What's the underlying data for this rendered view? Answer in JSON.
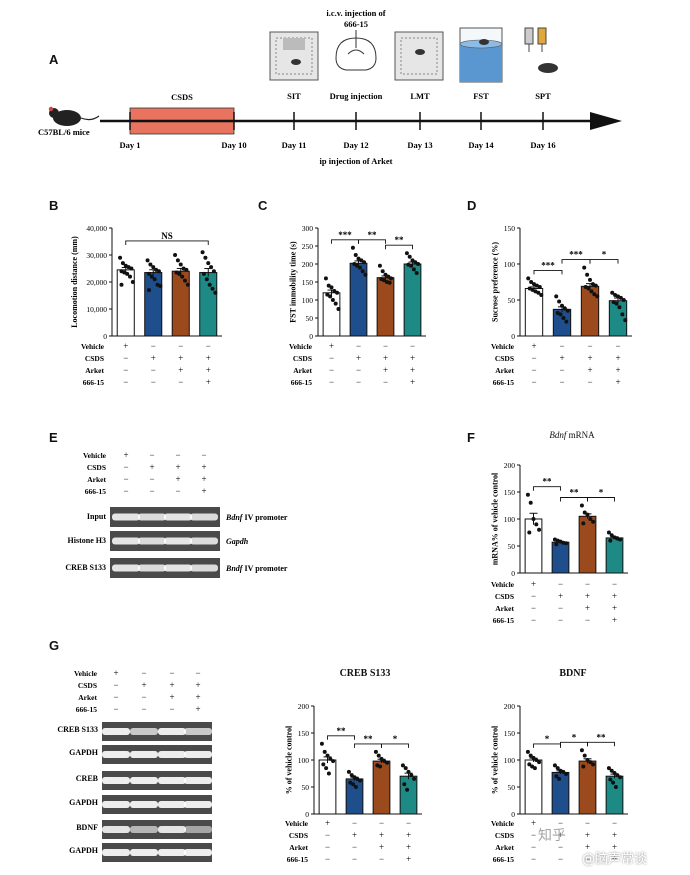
{
  "panel_labels": {
    "a": "A",
    "b": "B",
    "c": "C",
    "d": "D",
    "e": "E",
    "f": "F",
    "g": "G"
  },
  "timeline": {
    "mouse_label": "C57BL/6 mice",
    "csds_label": "CSDS",
    "icv_label": "i.c.v. injection of",
    "icv_compound": "666-15",
    "ip_label": "ip injection of Arket",
    "events": [
      {
        "top": "",
        "day": "Day 1"
      },
      {
        "top": "",
        "day": "Day 10"
      },
      {
        "top": "SIT",
        "day": "Day 11"
      },
      {
        "top": "Drug injection",
        "day": "Day 12"
      },
      {
        "top": "LMT",
        "day": "Day 13"
      },
      {
        "top": "FST",
        "day": "Day 14"
      },
      {
        "top": "SPT",
        "day": "Day 16"
      }
    ],
    "colors": {
      "csds_bar": "#e8735e"
    }
  },
  "groups": {
    "rows": [
      "Vehicle",
      "CSDS",
      "Arket",
      "666-15"
    ],
    "signs": [
      [
        "+",
        "−",
        "−",
        "−"
      ],
      [
        "−",
        "+",
        "+",
        "+"
      ],
      [
        "−",
        "−",
        "+",
        "+"
      ],
      [
        "−",
        "−",
        "−",
        "+"
      ]
    ],
    "colors": [
      "#ffffff",
      "#1f4e8c",
      "#9a4a1c",
      "#1e8a86"
    ]
  },
  "panel_e": {
    "rows": [
      {
        "label": "Input",
        "gene_italic": "Bdnf",
        "gene_rest": " IV promoter"
      },
      {
        "label": "Histone H3",
        "gene_italic": "Gapdh",
        "gene_rest": ""
      },
      {
        "label": "CREB S133",
        "gene_italic": "Bndf",
        "gene_rest": " IV promoter"
      }
    ]
  },
  "panel_f": {
    "title_italic": "Bdnf",
    "title_rest": " mRNA"
  },
  "panel_g": {
    "blot_labels": [
      "CREB S133",
      "GAPDH",
      "CREB",
      "GAPDH",
      "BDNF",
      "GAPDH"
    ],
    "chart_titles": [
      "CREB S133",
      "BDNF"
    ]
  },
  "watermark": {
    "line1": "知乎",
    "line2": "@脑声常谈"
  },
  "chart_data": [
    {
      "id": "B",
      "type": "bar",
      "categories": [
        "Vehicle",
        "CSDS",
        "CSDS+Arket",
        "CSDS+Arket+666-15"
      ],
      "values": [
        24500,
        23500,
        24000,
        23500
      ],
      "ylabel": "Locomotion distance (mm)",
      "ylim": [
        0,
        40000
      ],
      "ticks": [
        0,
        10000,
        20000,
        30000,
        40000
      ],
      "tick_labels": [
        "0",
        "10,000",
        "20,000",
        "30,000",
        "40,000"
      ],
      "points": [
        [
          29000,
          27000,
          26000,
          25500,
          25000,
          24000,
          23500,
          23000,
          22000,
          20000,
          19000
        ],
        [
          28000,
          26500,
          25500,
          24500,
          24000,
          23000,
          22000,
          21000,
          19000,
          18500,
          17000
        ],
        [
          30000,
          28000,
          26500,
          25000,
          24500,
          23500,
          23000,
          22000,
          20500,
          19000
        ],
        [
          31000,
          29000,
          27000,
          25500,
          24000,
          23000,
          21000,
          19000,
          17500,
          16000
        ]
      ],
      "brackets": [
        {
          "from": 0,
          "to": 3,
          "text": "NS"
        }
      ]
    },
    {
      "id": "C",
      "type": "bar",
      "categories": [
        "Vehicle",
        "CSDS",
        "CSDS+Arket",
        "CSDS+Arket+666-15"
      ],
      "values": [
        120,
        202,
        162,
        200
      ],
      "ylabel": "FST immobility time (s)",
      "ylim": [
        0,
        300
      ],
      "ticks": [
        0,
        50,
        100,
        150,
        200,
        250,
        300
      ],
      "tick_labels": [
        "0",
        "50",
        "100",
        "150",
        "200",
        "250",
        "300"
      ],
      "points": [
        [
          160,
          140,
          135,
          125,
          120,
          115,
          110,
          100,
          90,
          75
        ],
        [
          245,
          225,
          215,
          210,
          205,
          200,
          195,
          190,
          180,
          170
        ],
        [
          195,
          180,
          170,
          165,
          160,
          158,
          155,
          150,
          148
        ],
        [
          230,
          220,
          210,
          205,
          200,
          198,
          195,
          185,
          175
        ]
      ],
      "brackets": [
        {
          "from": 0,
          "to": 1,
          "text": "***"
        },
        {
          "from": 1,
          "to": 2,
          "text": "**"
        },
        {
          "from": 2,
          "to": 3,
          "text": "**"
        }
      ]
    },
    {
      "id": "D",
      "type": "bar",
      "categories": [
        "Vehicle",
        "CSDS",
        "CSDS+Arket",
        "CSDS+Arket+666-15"
      ],
      "values": [
        66,
        37,
        69,
        49
      ],
      "ylabel": "Sucrose preference (%)",
      "ylim": [
        0,
        150
      ],
      "ticks": [
        0,
        50,
        100,
        150
      ],
      "tick_labels": [
        "0",
        "50",
        "100",
        "150"
      ],
      "points": [
        [
          80,
          75,
          72,
          70,
          68,
          66,
          64,
          62,
          60,
          57
        ],
        [
          55,
          48,
          42,
          38,
          35,
          32,
          30,
          25,
          20
        ],
        [
          95,
          85,
          78,
          72,
          70,
          68,
          66,
          62,
          58,
          55
        ],
        [
          60,
          57,
          55,
          53,
          50,
          47,
          45,
          40,
          30,
          22
        ]
      ],
      "brackets": [
        {
          "from": 0,
          "to": 1,
          "text": "***"
        },
        {
          "from": 1,
          "to": 2,
          "text": "***"
        },
        {
          "from": 2,
          "to": 3,
          "text": "*"
        }
      ]
    },
    {
      "id": "F",
      "type": "bar",
      "categories": [
        "Vehicle",
        "CSDS",
        "CSDS+Arket",
        "CSDS+Arket+666-15"
      ],
      "values": [
        100,
        57,
        105,
        65
      ],
      "ylabel": "mRNA% of vehicle control",
      "ylim": [
        0,
        200
      ],
      "ticks": [
        0,
        50,
        100,
        150,
        200
      ],
      "tick_labels": [
        "0",
        "50",
        "100",
        "150",
        "200"
      ],
      "points": [
        [
          145,
          130,
          100,
          90,
          80,
          75
        ],
        [
          62,
          60,
          58,
          56,
          55,
          53
        ],
        [
          125,
          112,
          108,
          100,
          95,
          92
        ],
        [
          75,
          70,
          66,
          64,
          62,
          60
        ]
      ],
      "brackets": [
        {
          "from": 0,
          "to": 1,
          "text": "**"
        },
        {
          "from": 1,
          "to": 2,
          "text": "**"
        },
        {
          "from": 2,
          "to": 3,
          "text": "*"
        }
      ]
    },
    {
      "id": "G-CREB",
      "type": "bar",
      "categories": [
        "Vehicle",
        "CSDS",
        "CSDS+Arket",
        "CSDS+Arket+666-15"
      ],
      "values": [
        100,
        65,
        98,
        70
      ],
      "ylabel": "% of vehicle control",
      "ylim": [
        0,
        200
      ],
      "ticks": [
        0,
        50,
        100,
        150,
        200
      ],
      "tick_labels": [
        "0",
        "50",
        "100",
        "150",
        "200"
      ],
      "points": [
        [
          130,
          115,
          108,
          102,
          98,
          92,
          85,
          75
        ],
        [
          78,
          72,
          68,
          65,
          62,
          58,
          55,
          50
        ],
        [
          115,
          108,
          102,
          98,
          95,
          90,
          88
        ],
        [
          90,
          85,
          78,
          72,
          65,
          55,
          45
        ]
      ],
      "brackets": [
        {
          "from": 0,
          "to": 1,
          "text": "**"
        },
        {
          "from": 1,
          "to": 2,
          "text": "**"
        },
        {
          "from": 2,
          "to": 3,
          "text": "*"
        }
      ]
    },
    {
      "id": "G-BDNF",
      "type": "bar",
      "categories": [
        "Vehicle",
        "CSDS",
        "CSDS+Arket",
        "CSDS+Arket+666-15"
      ],
      "values": [
        100,
        77,
        98,
        70
      ],
      "ylabel": "% of vehicle control",
      "ylim": [
        0,
        200
      ],
      "ticks": [
        0,
        50,
        100,
        150,
        200
      ],
      "tick_labels": [
        "0",
        "50",
        "100",
        "150",
        "200"
      ],
      "points": [
        [
          115,
          108,
          104,
          100,
          96,
          92,
          88,
          85
        ],
        [
          90,
          85,
          80,
          78,
          74,
          70,
          65
        ],
        [
          118,
          108,
          100,
          96,
          92,
          88
        ],
        [
          85,
          80,
          76,
          72,
          68,
          64,
          58,
          50
        ]
      ],
      "brackets": [
        {
          "from": 0,
          "to": 1,
          "text": "*"
        },
        {
          "from": 1,
          "to": 2,
          "text": "*"
        },
        {
          "from": 2,
          "to": 3,
          "text": "**"
        }
      ]
    }
  ]
}
